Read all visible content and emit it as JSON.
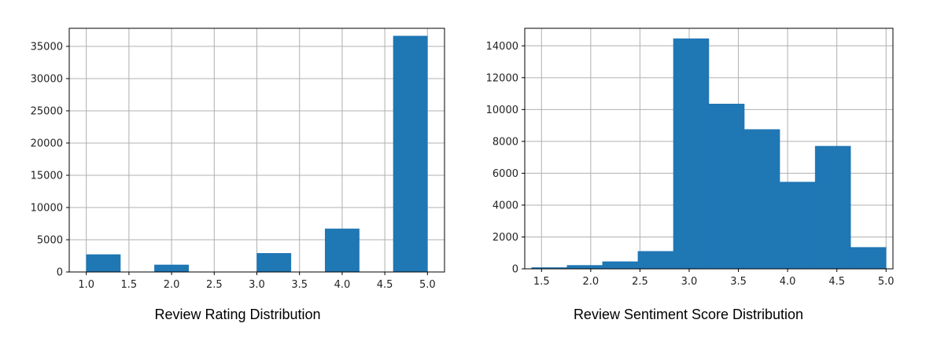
{
  "chart_data": [
    {
      "type": "bar",
      "title": "Review Rating Distribution",
      "xlim": [
        0.8,
        5.2
      ],
      "ylim": [
        0,
        37800
      ],
      "xticks": [
        "1.0",
        "1.5",
        "2.0",
        "2.5",
        "3.0",
        "3.5",
        "4.0",
        "4.5",
        "5.0"
      ],
      "yticks": [
        "0",
        "5000",
        "10000",
        "15000",
        "20000",
        "25000",
        "30000",
        "35000"
      ],
      "grid": true,
      "color": "#1f77b4",
      "bins": [
        {
          "x0": 1.0,
          "x1": 1.4,
          "value": 2700
        },
        {
          "x0": 1.8,
          "x1": 2.2,
          "value": 1100
        },
        {
          "x0": 3.0,
          "x1": 3.4,
          "value": 2900
        },
        {
          "x0": 3.8,
          "x1": 4.2,
          "value": 6700
        },
        {
          "x0": 4.6,
          "x1": 5.0,
          "value": 36600
        }
      ]
    },
    {
      "type": "bar",
      "title": "Review Sentiment Score Distribution",
      "xlim": [
        1.33,
        5.07
      ],
      "ylim": [
        0,
        15100
      ],
      "xticks": [
        "1.5",
        "2.0",
        "2.5",
        "3.0",
        "3.5",
        "4.0",
        "4.5",
        "5.0"
      ],
      "yticks": [
        "0",
        "2000",
        "4000",
        "6000",
        "8000",
        "10000",
        "12000",
        "14000"
      ],
      "grid": true,
      "color": "#1f77b4",
      "bins": [
        {
          "x0": 1.4,
          "x1": 1.76,
          "value": 80
        },
        {
          "x0": 1.76,
          "x1": 2.12,
          "value": 220
        },
        {
          "x0": 2.12,
          "x1": 2.48,
          "value": 450
        },
        {
          "x0": 2.48,
          "x1": 2.84,
          "value": 1100
        },
        {
          "x0": 2.84,
          "x1": 3.2,
          "value": 14450
        },
        {
          "x0": 3.2,
          "x1": 3.56,
          "value": 10350
        },
        {
          "x0": 3.56,
          "x1": 3.92,
          "value": 8750
        },
        {
          "x0": 3.92,
          "x1": 4.28,
          "value": 5450
        },
        {
          "x0": 4.28,
          "x1": 4.64,
          "value": 7700
        },
        {
          "x0": 4.64,
          "x1": 5.0,
          "value": 1350
        }
      ]
    }
  ]
}
